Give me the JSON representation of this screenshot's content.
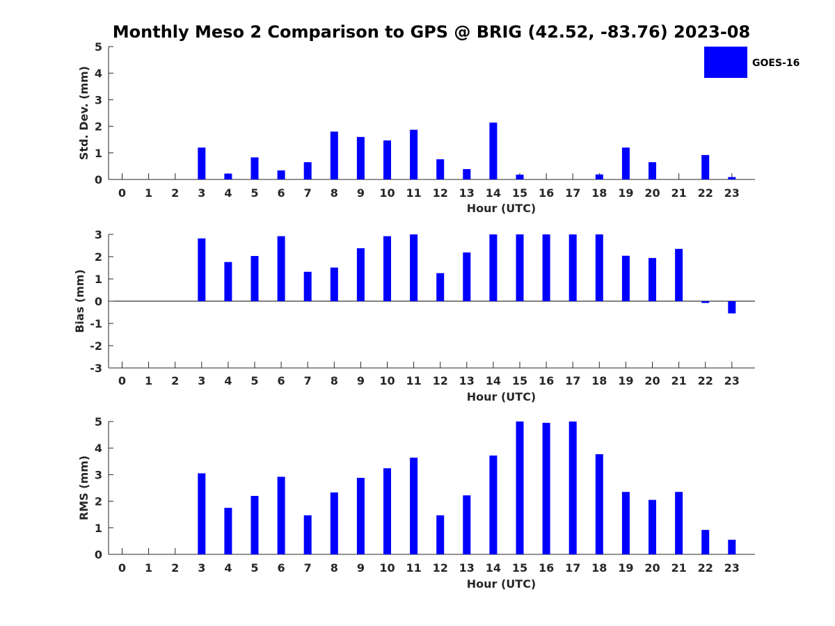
{
  "chart_data": {
    "type": "bar",
    "title": "Monthly Meso 2 Comparison to GPS @ BRIG (42.52, -83.76) 2023-08",
    "legend": {
      "placement": "top-right",
      "entries": [
        {
          "name": "GOES-16",
          "color": "#0000ff"
        }
      ]
    },
    "panels": [
      {
        "name": "std-dev",
        "type": "bar",
        "xlabel": "Hour (UTC)",
        "ylabel": "Std. Dev. (mm)",
        "ylim": [
          0,
          5
        ],
        "yticks": [
          0,
          1,
          2,
          3,
          4,
          5
        ],
        "categories": [
          "0",
          "1",
          "2",
          "3",
          "4",
          "5",
          "6",
          "7",
          "8",
          "9",
          "10",
          "11",
          "12",
          "13",
          "14",
          "15",
          "16",
          "17",
          "18",
          "19",
          "20",
          "21",
          "22",
          "23"
        ],
        "series": [
          {
            "name": "GOES-16",
            "color": "#0000ff",
            "values": [
              0,
              0,
              0,
              1.2,
              0.22,
              0.83,
              0.34,
              0.65,
              1.8,
              1.6,
              1.47,
              1.87,
              0.76,
              0.39,
              2.14,
              0.18,
              0,
              0,
              0.19,
              1.2,
              0.65,
              0,
              0.92,
              0.09
            ]
          }
        ]
      },
      {
        "name": "bias",
        "type": "bar",
        "xlabel": "Hour (UTC)",
        "ylabel": "Bias (mm)",
        "ylim": [
          -3,
          3
        ],
        "yticks": [
          -3,
          -2,
          -1,
          0,
          1,
          2,
          3
        ],
        "categories": [
          "0",
          "1",
          "2",
          "3",
          "4",
          "5",
          "6",
          "7",
          "8",
          "9",
          "10",
          "11",
          "12",
          "13",
          "14",
          "15",
          "16",
          "17",
          "18",
          "19",
          "20",
          "21",
          "22",
          "23"
        ],
        "series": [
          {
            "name": "GOES-16",
            "color": "#0000ff",
            "values": [
              0,
              0,
              0,
              2.82,
              1.76,
              2.03,
              2.92,
              1.32,
              1.51,
              2.38,
              2.92,
              3.0,
              1.26,
              2.19,
              3.0,
              3.0,
              3.0,
              3.0,
              3.0,
              2.04,
              1.94,
              2.35,
              -0.08,
              -0.55
            ]
          }
        ]
      },
      {
        "name": "rms",
        "type": "bar",
        "xlabel": "Hour (UTC)",
        "ylabel": "RMS (mm)",
        "ylim": [
          0,
          5
        ],
        "yticks": [
          0,
          1,
          2,
          3,
          4,
          5
        ],
        "categories": [
          "0",
          "1",
          "2",
          "3",
          "4",
          "5",
          "6",
          "7",
          "8",
          "9",
          "10",
          "11",
          "12",
          "13",
          "14",
          "15",
          "16",
          "17",
          "18",
          "19",
          "20",
          "21",
          "22",
          "23"
        ],
        "series": [
          {
            "name": "GOES-16",
            "color": "#0000ff",
            "values": [
              0,
              0,
              0,
              3.05,
              1.75,
              2.2,
              2.92,
              1.47,
              2.33,
              2.88,
              3.24,
              3.64,
              1.47,
              2.22,
              3.72,
              5.0,
              4.95,
              5.0,
              3.77,
              2.35,
              2.05,
              2.35,
              0.92,
              0.55
            ]
          }
        ]
      }
    ]
  }
}
